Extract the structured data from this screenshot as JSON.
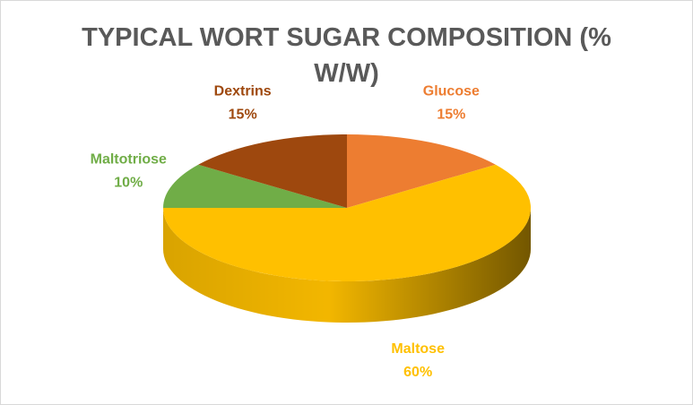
{
  "chart_data": {
    "type": "pie",
    "title": "TYPICAL WORT SUGAR COMPOSITION (% W/W)",
    "categories": [
      "Glucose",
      "Maltose",
      "Maltotriose",
      "Dextrins"
    ],
    "values": [
      15,
      60,
      10,
      15
    ],
    "value_labels": [
      "15%",
      "60%",
      "10%",
      "15%"
    ],
    "colors": [
      "#ED7D31",
      "#FFC000",
      "#70AD47",
      "#9E480E"
    ]
  }
}
